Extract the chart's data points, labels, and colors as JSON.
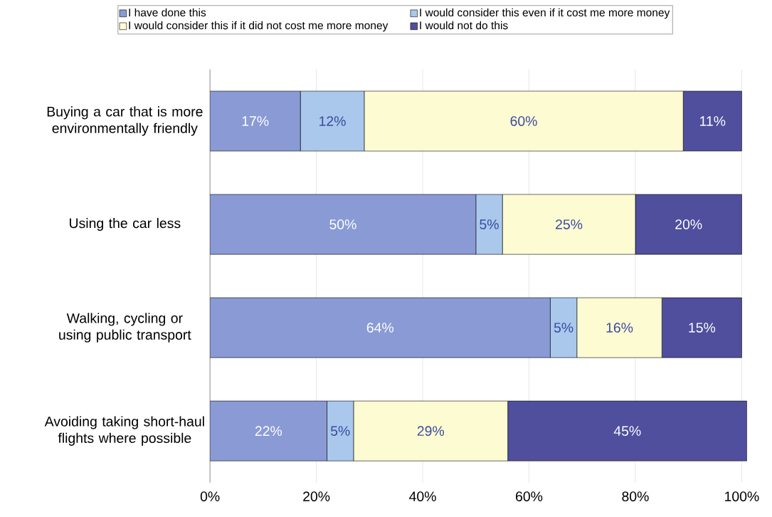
{
  "chart_data": {
    "type": "bar",
    "orientation": "horizontal",
    "stacked": true,
    "categories": [
      "Buying a car that is more environmentally friendly",
      "Using the car less",
      "Walking, cycling or using public transport",
      "Avoiding taking short-haul flights where possible"
    ],
    "series": [
      {
        "name": "I have done this",
        "color": "#8a9ad4",
        "values": [
          17,
          50,
          64,
          22
        ],
        "value_labels": [
          "17%",
          "50%",
          "64%",
          "22%"
        ]
      },
      {
        "name": "I would consider this even if it cost me more money",
        "color": "#a9c8ec",
        "values": [
          12,
          5,
          5,
          5
        ],
        "value_labels": [
          "12%",
          "5%",
          "5%",
          "5%"
        ]
      },
      {
        "name": "I would consider this if it did not cost me more money",
        "color": "#fdfbd2",
        "values": [
          60,
          25,
          16,
          29
        ],
        "value_labels": [
          "60%",
          "25%",
          "16%",
          "29%"
        ]
      },
      {
        "name": "I would not do this",
        "color": "#4f4f9e",
        "values": [
          11,
          20,
          15,
          45
        ],
        "value_labels": [
          "11%",
          "20%",
          "15%",
          "45%"
        ]
      }
    ],
    "xlim": [
      0,
      101
    ],
    "xticks": [
      {
        "value": 0,
        "label": "0%"
      },
      {
        "value": 20,
        "label": "20%"
      },
      {
        "value": 40,
        "label": "40%"
      },
      {
        "value": 60,
        "label": "60%"
      },
      {
        "value": 80,
        "label": "80%"
      },
      {
        "value": 100,
        "label": "100%"
      }
    ],
    "grid": "x",
    "legend": "top"
  }
}
